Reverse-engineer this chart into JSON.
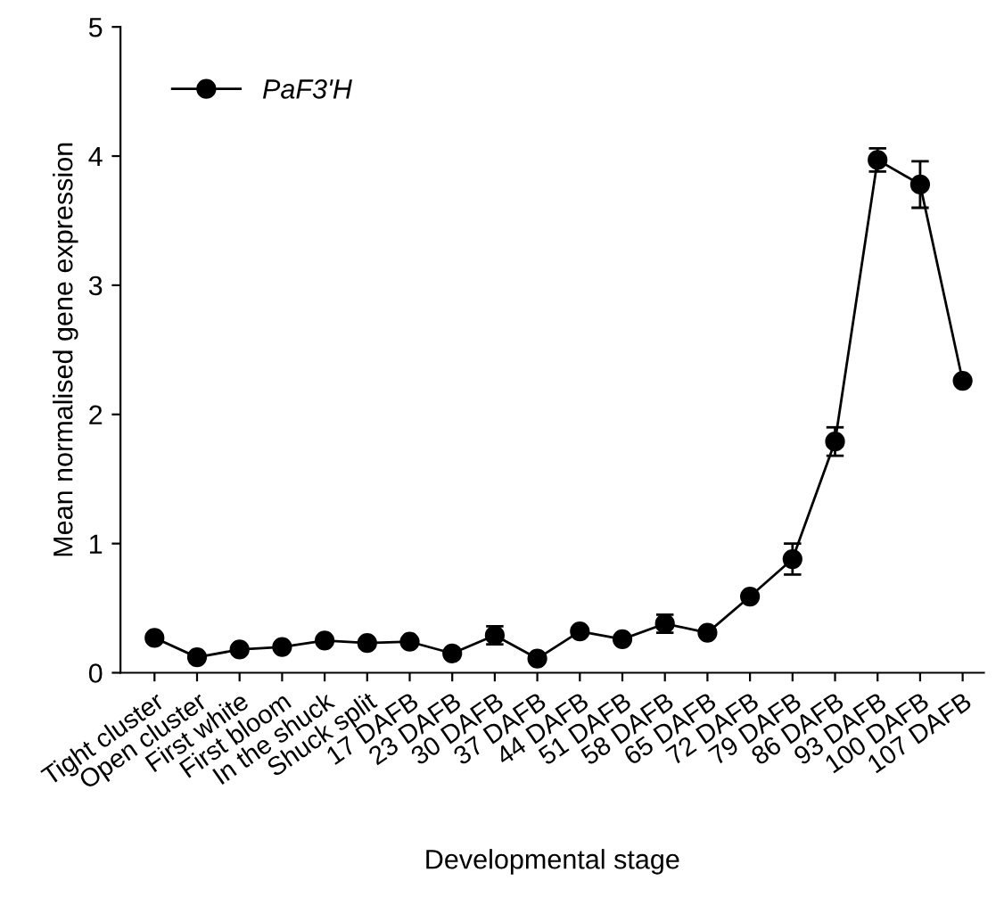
{
  "chart_data": {
    "type": "line",
    "xlabel": "Developmental stage",
    "ylabel": "Mean normalised gene expression",
    "categories": [
      "Tight cluster",
      "Open cluster",
      "First white",
      "First bloom",
      "In the shuck",
      "Shuck split",
      "17 DAFB",
      "23 DAFB",
      "30 DAFB",
      "37 DAFB",
      "44 DAFB",
      "51 DAFB",
      "58 DAFB",
      "65 DAFB",
      "72 DAFB",
      "79 DAFB",
      "86 DAFB",
      "93 DAFB",
      "100 DAFB",
      "107 DAFB"
    ],
    "series": [
      {
        "name": "PaF3'H",
        "color": "#000000",
        "values": [
          0.27,
          0.12,
          0.18,
          0.2,
          0.25,
          0.23,
          0.24,
          0.15,
          0.29,
          0.11,
          0.32,
          0.26,
          0.38,
          0.31,
          0.59,
          0.88,
          1.79,
          3.97,
          3.78,
          2.26
        ],
        "errors": [
          0.02,
          0.02,
          0.02,
          0.02,
          0.02,
          0.02,
          0.02,
          0.02,
          0.07,
          0.02,
          0.02,
          0.02,
          0.07,
          0.02,
          0.02,
          0.12,
          0.11,
          0.09,
          0.18,
          0.02
        ]
      }
    ],
    "ylim": [
      0,
      5
    ],
    "yticks": [
      0,
      1,
      2,
      3,
      4,
      5
    ],
    "marker": "circle",
    "line_style": "solid",
    "legend": "top left",
    "grid": false
  }
}
